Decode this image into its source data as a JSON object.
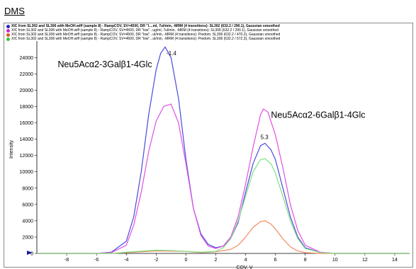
{
  "header": {
    "title": "DMS"
  },
  "legend": [
    {
      "text": "XIC from SL302 and SL306 with MeOH.wiff (sample 8) - RampCOV, SV=4500, DR \"l....ml, 7ul/min, -MRM (4 transitions): SL302 (632.2 / 290.1), Gaussian smoothed",
      "color": "#2a2ab8",
      "bold": true
    },
    {
      "text": "XIC from SL302 and SL306 with MeOH.wiff (sample 8) - RampCOV, SV=4500, DR \"low\"...ug/ml, 7ul/min, -MRM (4 transitions): SL306 (632.2 / 290.1), Gaussian smoothed",
      "color": "#c82bc8",
      "bold": false
    },
    {
      "text": "XIC from SL302 and SL306 with MeOH.wiff (sample 8) - RampCOV, SV=4500, DR \"low\"...ul/min, -MRM (4 transitions): Predom. SL306 (632.2 / 470.2), Gaussian smoothed",
      "color": "#e05a20",
      "bold": false
    },
    {
      "text": "XIC from SL302 and SL306 with MeOH.wiff (sample 8) - RampCOV, SV=4500, DR \"low\"...ul/min, -MRM (4 transitions): Predom. SL306 (632.2 / 572.3), Gaussian smoothed",
      "color": "#3ac83a",
      "bold": false
    }
  ],
  "chart_data": {
    "type": "line",
    "title": "",
    "xlabel": "COV, V",
    "ylabel": "Intensity",
    "xlim": [
      -10,
      15
    ],
    "ylim": [
      0,
      25500
    ],
    "x_ticks": [
      -8,
      -6,
      -4,
      -2,
      0,
      2,
      4,
      6,
      8,
      10,
      12,
      14
    ],
    "y_ticks": [
      0,
      2000,
      4000,
      6000,
      8000,
      10000,
      12000,
      14000,
      16000,
      18000,
      20000,
      22000,
      24000
    ],
    "grid": false,
    "legend_position": "top",
    "series": [
      {
        "color": "#4a4ae0",
        "points": [
          [
            -10,
            0
          ],
          [
            -6,
            0
          ],
          [
            -5,
            150
          ],
          [
            -4,
            1500
          ],
          [
            -3.5,
            4500
          ],
          [
            -3,
            10000
          ],
          [
            -2.5,
            17000
          ],
          [
            -2,
            22500
          ],
          [
            -1.7,
            24500
          ],
          [
            -1.4,
            25300
          ],
          [
            -1,
            24000
          ],
          [
            -0.5,
            19000
          ],
          [
            0,
            11500
          ],
          [
            0.5,
            5500
          ],
          [
            1,
            2400
          ],
          [
            1.5,
            1100
          ],
          [
            2,
            700
          ],
          [
            2.5,
            900
          ],
          [
            3,
            1800
          ],
          [
            3.5,
            3800
          ],
          [
            4,
            7500
          ],
          [
            4.5,
            11000
          ],
          [
            5,
            13200
          ],
          [
            5.3,
            13500
          ],
          [
            5.7,
            12700
          ],
          [
            6,
            11500
          ],
          [
            6.5,
            8000
          ],
          [
            7,
            4500
          ],
          [
            7.5,
            2000
          ],
          [
            8,
            700
          ],
          [
            9,
            100
          ],
          [
            10,
            0
          ],
          [
            15,
            0
          ]
        ]
      },
      {
        "color": "#e050e0",
        "points": [
          [
            -10,
            0
          ],
          [
            -6,
            0
          ],
          [
            -5,
            100
          ],
          [
            -4,
            1000
          ],
          [
            -3.5,
            3500
          ],
          [
            -3,
            7500
          ],
          [
            -2.5,
            12500
          ],
          [
            -2,
            16200
          ],
          [
            -1.5,
            18000
          ],
          [
            -1,
            18300
          ],
          [
            -0.5,
            16000
          ],
          [
            0,
            11000
          ],
          [
            0.5,
            5500
          ],
          [
            1,
            2200
          ],
          [
            1.5,
            900
          ],
          [
            2,
            600
          ],
          [
            2.5,
            900
          ],
          [
            3,
            2000
          ],
          [
            3.5,
            4500
          ],
          [
            4,
            8500
          ],
          [
            4.5,
            13000
          ],
          [
            5,
            17000
          ],
          [
            5.2,
            17700
          ],
          [
            5.5,
            17300
          ],
          [
            6,
            14500
          ],
          [
            6.5,
            10500
          ],
          [
            7,
            6000
          ],
          [
            7.5,
            2800
          ],
          [
            8,
            1000
          ],
          [
            9,
            150
          ],
          [
            10,
            0
          ],
          [
            15,
            0
          ]
        ]
      },
      {
        "color": "#f08a60",
        "points": [
          [
            -10,
            0
          ],
          [
            -5,
            0
          ],
          [
            -4,
            100
          ],
          [
            -2,
            300
          ],
          [
            0,
            250
          ],
          [
            1,
            100
          ],
          [
            2,
            200
          ],
          [
            3,
            500
          ],
          [
            3.5,
            1000
          ],
          [
            4,
            2000
          ],
          [
            4.5,
            3200
          ],
          [
            5,
            3900
          ],
          [
            5.3,
            4000
          ],
          [
            5.7,
            3600
          ],
          [
            6,
            3000
          ],
          [
            6.5,
            1800
          ],
          [
            7,
            800
          ],
          [
            7.5,
            300
          ],
          [
            8,
            100
          ],
          [
            9,
            0
          ],
          [
            15,
            0
          ]
        ]
      },
      {
        "color": "#80e080",
        "points": [
          [
            -10,
            0
          ],
          [
            -5,
            0
          ],
          [
            -4,
            150
          ],
          [
            -2,
            400
          ],
          [
            -1,
            350
          ],
          [
            0,
            250
          ],
          [
            1,
            150
          ],
          [
            2,
            250
          ],
          [
            2.5,
            700
          ],
          [
            3,
            1800
          ],
          [
            3.5,
            4000
          ],
          [
            4,
            7000
          ],
          [
            4.5,
            10000
          ],
          [
            5,
            11500
          ],
          [
            5.3,
            11600
          ],
          [
            5.7,
            11000
          ],
          [
            6,
            9800
          ],
          [
            6.5,
            7000
          ],
          [
            7,
            4000
          ],
          [
            7.5,
            1800
          ],
          [
            8,
            600
          ],
          [
            9,
            100
          ],
          [
            10,
            0
          ],
          [
            15,
            0
          ]
        ]
      }
    ],
    "annotations": [
      {
        "text": "Neu5Acα2-3Galβ1-4Glc",
        "x": -8.6,
        "y": 22800,
        "size": "big"
      },
      {
        "text": "Neu5Acα2-6Galβ1-4Glc",
        "x": 5.7,
        "y": 16600,
        "size": "big"
      },
      {
        "text": "-1.4",
        "x": -1.3,
        "y": 24300,
        "size": "small"
      },
      {
        "text": "5.3",
        "x": 5.0,
        "y": 14000,
        "size": "small"
      }
    ]
  }
}
